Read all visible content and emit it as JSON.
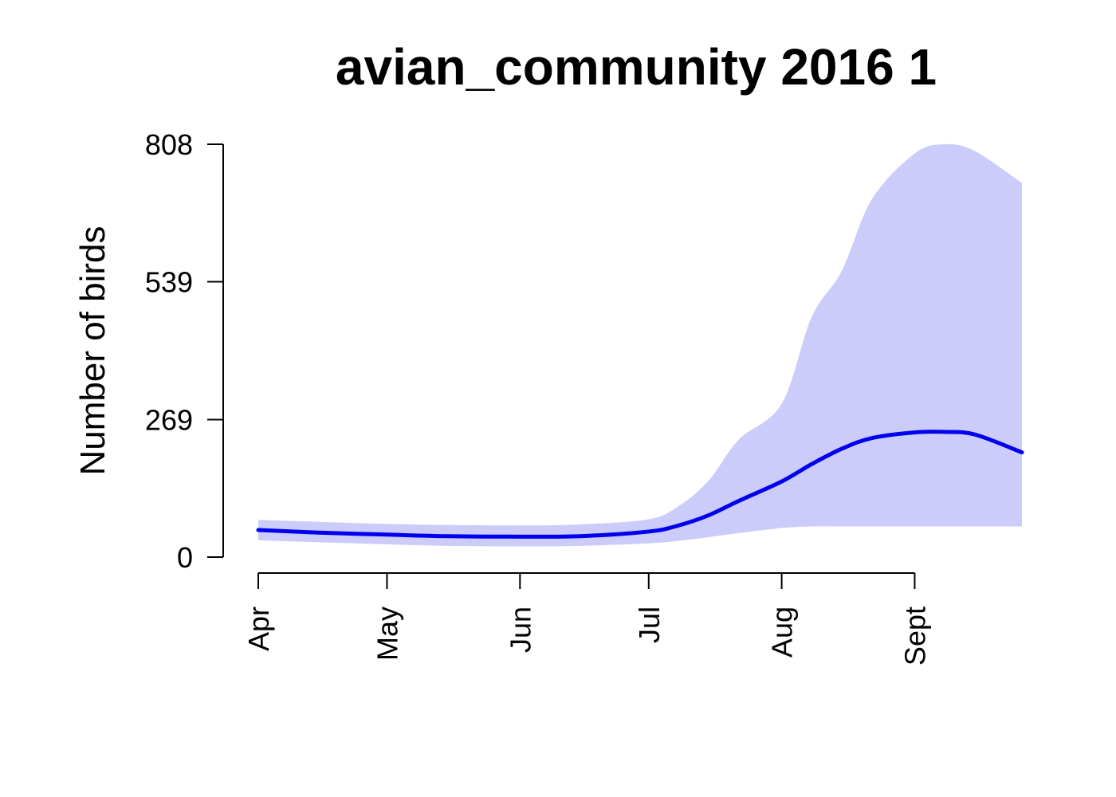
{
  "chart_data": {
    "type": "area",
    "title": "avian_community 2016 1",
    "xlabel": "",
    "ylabel": "Number of birds",
    "x_tick_labels": [
      {
        "label": "Apr",
        "date": "2016-04-01"
      },
      {
        "label": "May",
        "date": "2016-05-01"
      },
      {
        "label": "Jun",
        "date": "2016-06-01"
      },
      {
        "label": "Jul",
        "date": "2016-07-01"
      },
      {
        "label": "Aug",
        "date": "2016-08-01"
      },
      {
        "label": "Sept",
        "date": "2016-09-01"
      }
    ],
    "y_ticks": [
      0,
      269,
      539,
      808
    ],
    "xlim": [
      "2016-04-01",
      "2016-09-26"
    ],
    "ylim": [
      0,
      808
    ],
    "grid": false,
    "colors": {
      "line": "#0000ee",
      "band": "#ccccfa"
    },
    "series": [
      {
        "x": [
          "2016-04-01",
          "2016-04-15",
          "2016-05-01",
          "2016-05-15",
          "2016-06-01",
          "2016-06-15",
          "2016-07-01",
          "2016-07-08",
          "2016-07-15",
          "2016-07-22",
          "2016-08-01",
          "2016-08-08",
          "2016-08-15",
          "2016-08-22",
          "2016-09-01",
          "2016-09-08",
          "2016-09-15",
          "2016-09-26"
        ],
        "y": [
          53,
          48,
          44,
          41,
          40,
          41,
          50,
          62,
          82,
          110,
          148,
          182,
          212,
          233,
          244,
          245,
          240,
          205
        ],
        "lower": [
          33,
          29,
          25,
          22,
          21,
          22,
          27,
          32,
          39,
          47,
          57,
          60,
          60,
          60,
          60,
          60,
          60,
          60
        ],
        "upper": [
          73,
          69,
          65,
          63,
          62,
          64,
          74,
          100,
          150,
          230,
          300,
          470,
          560,
          700,
          790,
          808,
          795,
          732
        ]
      }
    ]
  }
}
